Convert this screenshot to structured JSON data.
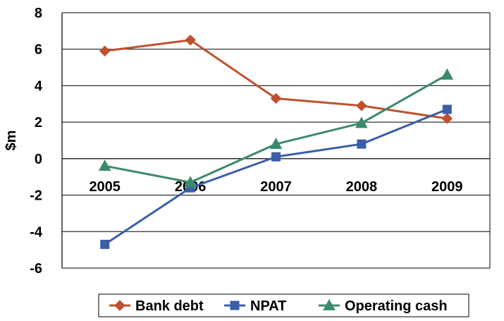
{
  "chart_data": {
    "type": "line",
    "title": "",
    "xlabel": "",
    "ylabel": "$m",
    "categories": [
      "2005",
      "2006",
      "2007",
      "2008",
      "2009"
    ],
    "ylim": [
      -6,
      8
    ],
    "yticks": [
      -6,
      -4,
      -2,
      0,
      2,
      4,
      6,
      8
    ],
    "grid": true,
    "legend_position": "bottom",
    "series": [
      {
        "name": "Bank debt",
        "color": "#C0502E",
        "marker": "diamond",
        "values": [
          5.9,
          6.5,
          3.3,
          2.9,
          2.2
        ]
      },
      {
        "name": "NPAT",
        "color": "#3A5FA8",
        "marker": "square",
        "values": [
          -4.7,
          -1.6,
          0.1,
          0.8,
          2.7
        ]
      },
      {
        "name": "Operating cash",
        "color": "#3C8A6A",
        "marker": "triangle",
        "values": [
          -0.4,
          -1.3,
          0.8,
          1.95,
          4.6
        ]
      }
    ]
  }
}
